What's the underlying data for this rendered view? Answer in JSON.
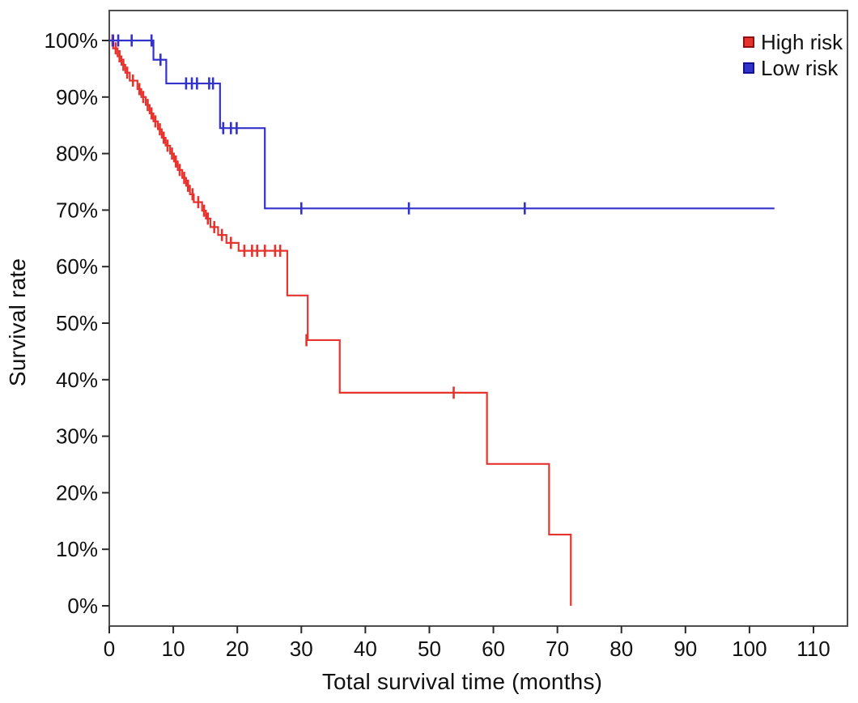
{
  "figure": {
    "background": "#ffffff",
    "border_color": "#4d4d4d",
    "tick_color": "#2a2a2a",
    "text_color": "#111111"
  },
  "legend": {
    "position": "top-right-inside",
    "items": [
      {
        "label": "High risk",
        "color": "#e6332e",
        "swatch_border": "#8f1212"
      },
      {
        "label": "Low risk",
        "color": "#3333cc",
        "swatch_border": "#14148f"
      }
    ]
  },
  "chart_data": {
    "type": "line",
    "subtype": "kaplan_meier_step",
    "title": "",
    "xlabel": "Total survival time (months)",
    "ylabel": "Survival rate",
    "xlim": [
      0,
      115.3
    ],
    "ylim_percent": [
      -3.6,
      105.4
    ],
    "x_ticks": [
      0,
      10,
      20,
      30,
      40,
      50,
      60,
      70,
      80,
      90,
      100,
      110
    ],
    "y_ticks_percent": [
      0,
      10,
      20,
      30,
      40,
      50,
      60,
      70,
      80,
      90,
      100
    ],
    "y_tick_suffix": "%",
    "grid": false,
    "censor_mark": "plus-tick",
    "series": [
      {
        "name": "High risk",
        "color": "#e6332e",
        "steps": [
          [
            0,
            100
          ],
          [
            0.6,
            98.6
          ],
          [
            1.3,
            97.2
          ],
          [
            1.9,
            95.7
          ],
          [
            2.5,
            94.3
          ],
          [
            3.2,
            92.9
          ],
          [
            4.4,
            91.4
          ],
          [
            5.0,
            90.0
          ],
          [
            5.7,
            88.6
          ],
          [
            6.3,
            87.1
          ],
          [
            6.9,
            85.7
          ],
          [
            7.6,
            84.3
          ],
          [
            8.2,
            82.8
          ],
          [
            8.8,
            81.4
          ],
          [
            9.5,
            80.0
          ],
          [
            10.1,
            78.6
          ],
          [
            10.7,
            77.1
          ],
          [
            11.4,
            75.7
          ],
          [
            12.0,
            74.3
          ],
          [
            12.6,
            72.8
          ],
          [
            13.2,
            71.4
          ],
          [
            14.5,
            69.9
          ],
          [
            15.1,
            68.5
          ],
          [
            15.8,
            67.0
          ],
          [
            17.0,
            65.6
          ],
          [
            18.3,
            64.2
          ],
          [
            20.2,
            62.8
          ],
          [
            27.8,
            54.9
          ],
          [
            31.0,
            47.0
          ],
          [
            36.0,
            37.7
          ],
          [
            59.0,
            25.1
          ],
          [
            68.7,
            12.6
          ],
          [
            72.1,
            0
          ]
        ],
        "end_time": 72.1,
        "censors": [
          [
            0.5,
            100
          ],
          [
            1.0,
            98.6
          ],
          [
            1.6,
            97.2
          ],
          [
            2.2,
            95.7
          ],
          [
            2.8,
            94.3
          ],
          [
            3.7,
            92.9
          ],
          [
            4.7,
            91.4
          ],
          [
            5.3,
            90.0
          ],
          [
            6.0,
            88.6
          ],
          [
            6.6,
            87.1
          ],
          [
            7.2,
            85.7
          ],
          [
            7.9,
            84.3
          ],
          [
            8.5,
            82.8
          ],
          [
            9.1,
            81.4
          ],
          [
            9.8,
            80.0
          ],
          [
            10.4,
            78.6
          ],
          [
            11.0,
            77.1
          ],
          [
            11.7,
            75.7
          ],
          [
            12.3,
            74.3
          ],
          [
            13.0,
            72.8
          ],
          [
            13.9,
            71.4
          ],
          [
            14.8,
            69.9
          ],
          [
            15.4,
            68.5
          ],
          [
            16.4,
            67.0
          ],
          [
            17.6,
            65.6
          ],
          [
            19.0,
            64.2
          ],
          [
            21.1,
            62.8
          ],
          [
            22.3,
            62.8
          ],
          [
            23.1,
            62.8
          ],
          [
            24.3,
            62.8
          ],
          [
            25.9,
            62.8
          ],
          [
            26.7,
            62.8
          ],
          [
            30.8,
            47.0
          ],
          [
            53.8,
            37.7
          ]
        ]
      },
      {
        "name": "Low risk",
        "color": "#3333cc",
        "steps": [
          [
            0,
            100
          ],
          [
            6.9,
            96.6
          ],
          [
            8.9,
            92.4
          ],
          [
            17.3,
            84.5
          ],
          [
            24.3,
            70.3
          ]
        ],
        "end_time": 103.9,
        "censors": [
          [
            0.6,
            100
          ],
          [
            1.4,
            100
          ],
          [
            3.5,
            100
          ],
          [
            6.6,
            100
          ],
          [
            8.0,
            96.6
          ],
          [
            12.0,
            92.4
          ],
          [
            12.9,
            92.4
          ],
          [
            13.7,
            92.4
          ],
          [
            15.6,
            92.4
          ],
          [
            16.2,
            92.4
          ],
          [
            17.8,
            84.5
          ],
          [
            19.0,
            84.5
          ],
          [
            19.9,
            84.5
          ],
          [
            30.0,
            70.3
          ],
          [
            46.8,
            70.3
          ],
          [
            64.9,
            70.3
          ]
        ]
      }
    ]
  }
}
